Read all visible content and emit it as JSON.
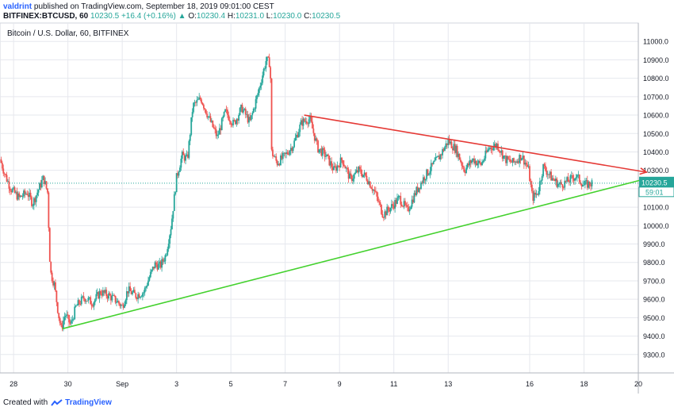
{
  "header": {
    "username": "valdrint",
    "published_text": " published on TradingView.com, September 18, 2019 09:01:00 CEST",
    "symbol": "BITFINEX:BTCUSD, 60",
    "last": "10230.5",
    "change_arrow": "▲",
    "change": "+16.4 (+0.16%)",
    "o_label": "O:",
    "o": "10230.4",
    "h_label": "H:",
    "h": "10231.0",
    "l_label": "L:",
    "l": "10230.0",
    "c_label": "C:",
    "c": "10230.5"
  },
  "legend": {
    "title": "Bitcoin / U.S. Dollar, 60, BITFINEX"
  },
  "price_tag": {
    "price": "10230.5",
    "countdown": "59:01"
  },
  "footer": {
    "created_with": "Created with",
    "brand": "TradingView"
  },
  "colors": {
    "up": "#26a69a",
    "down": "#ef5350",
    "resistance": "#e53935",
    "support": "#43d12d",
    "grid": "#e6e8ee",
    "price_line": "#26a69a"
  },
  "chart_data": {
    "type": "candlestick",
    "title": "Bitcoin / U.S. Dollar, 60, BITFINEX",
    "ylim": [
      9200,
      11100
    ],
    "y_ticks": [
      9300,
      9400,
      9500,
      9600,
      9700,
      9800,
      9900,
      10000,
      10100,
      10200,
      10300,
      10400,
      10500,
      10600,
      10700,
      10800,
      10900,
      11000
    ],
    "y_tick_labels": [
      "9300.0",
      "9400.0",
      "9500.0",
      "9600.0",
      "9700.0",
      "9800.0",
      "9900.0",
      "10000.0",
      "10100.0",
      "10200.0",
      "10300.0",
      "10400.0",
      "10500.0",
      "10600.0",
      "10700.0",
      "10800.0",
      "10900.0",
      "11000.0"
    ],
    "x_domain_days": [
      27.5,
      51.0
    ],
    "x_ticks": [
      {
        "day": 28,
        "label": "28"
      },
      {
        "day": 30,
        "label": "30"
      },
      {
        "day": 32,
        "label": "Sep"
      },
      {
        "day": 34,
        "label": "3"
      },
      {
        "day": 36,
        "label": "5"
      },
      {
        "day": 38,
        "label": "7"
      },
      {
        "day": 40,
        "label": "9"
      },
      {
        "day": 42,
        "label": "11"
      },
      {
        "day": 44,
        "label": "13"
      },
      {
        "day": 47,
        "label": "16"
      },
      {
        "day": 49,
        "label": "18"
      },
      {
        "day": 51,
        "label": "20"
      }
    ],
    "series": [
      {
        "day": 27.5,
        "price": 10360
      },
      {
        "day": 27.7,
        "price": 10270
      },
      {
        "day": 27.9,
        "price": 10200
      },
      {
        "day": 28.2,
        "price": 10150
      },
      {
        "day": 28.5,
        "price": 10180
      },
      {
        "day": 28.7,
        "price": 10120
      },
      {
        "day": 28.9,
        "price": 10190
      },
      {
        "day": 29.1,
        "price": 10260
      },
      {
        "day": 29.25,
        "price": 10180
      },
      {
        "day": 29.35,
        "price": 9750
      },
      {
        "day": 29.5,
        "price": 9680
      },
      {
        "day": 29.65,
        "price": 9520
      },
      {
        "day": 29.75,
        "price": 9440
      },
      {
        "day": 29.9,
        "price": 9520
      },
      {
        "day": 30.1,
        "price": 9460
      },
      {
        "day": 30.3,
        "price": 9560
      },
      {
        "day": 30.6,
        "price": 9610
      },
      {
        "day": 30.9,
        "price": 9580
      },
      {
        "day": 31.2,
        "price": 9640
      },
      {
        "day": 31.5,
        "price": 9620
      },
      {
        "day": 31.8,
        "price": 9590
      },
      {
        "day": 32.0,
        "price": 9560
      },
      {
        "day": 32.2,
        "price": 9650
      },
      {
        "day": 32.5,
        "price": 9620
      },
      {
        "day": 32.8,
        "price": 9640
      },
      {
        "day": 33.0,
        "price": 9720
      },
      {
        "day": 33.2,
        "price": 9790
      },
      {
        "day": 33.4,
        "price": 9780
      },
      {
        "day": 33.6,
        "price": 9840
      },
      {
        "day": 33.8,
        "price": 10000
      },
      {
        "day": 34.0,
        "price": 10260
      },
      {
        "day": 34.2,
        "price": 10380
      },
      {
        "day": 34.4,
        "price": 10360
      },
      {
        "day": 34.6,
        "price": 10650
      },
      {
        "day": 34.9,
        "price": 10690
      },
      {
        "day": 35.2,
        "price": 10580
      },
      {
        "day": 35.5,
        "price": 10480
      },
      {
        "day": 35.8,
        "price": 10620
      },
      {
        "day": 36.1,
        "price": 10550
      },
      {
        "day": 36.4,
        "price": 10640
      },
      {
        "day": 36.7,
        "price": 10560
      },
      {
        "day": 37.0,
        "price": 10720
      },
      {
        "day": 37.3,
        "price": 10900
      },
      {
        "day": 37.45,
        "price": 10880
      },
      {
        "day": 37.5,
        "price": 10400
      },
      {
        "day": 37.7,
        "price": 10340
      },
      {
        "day": 38.0,
        "price": 10380
      },
      {
        "day": 38.3,
        "price": 10440
      },
      {
        "day": 38.6,
        "price": 10560
      },
      {
        "day": 38.9,
        "price": 10580
      },
      {
        "day": 39.2,
        "price": 10420
      },
      {
        "day": 39.5,
        "price": 10380
      },
      {
        "day": 39.8,
        "price": 10300
      },
      {
        "day": 40.1,
        "price": 10360
      },
      {
        "day": 40.4,
        "price": 10250
      },
      {
        "day": 40.7,
        "price": 10300
      },
      {
        "day": 41.0,
        "price": 10260
      },
      {
        "day": 41.3,
        "price": 10180
      },
      {
        "day": 41.6,
        "price": 10060
      },
      {
        "day": 41.9,
        "price": 10100
      },
      {
        "day": 42.2,
        "price": 10150
      },
      {
        "day": 42.5,
        "price": 10080
      },
      {
        "day": 42.8,
        "price": 10180
      },
      {
        "day": 43.1,
        "price": 10260
      },
      {
        "day": 43.4,
        "price": 10320
      },
      {
        "day": 43.7,
        "price": 10380
      },
      {
        "day": 44.0,
        "price": 10460
      },
      {
        "day": 44.3,
        "price": 10410
      },
      {
        "day": 44.6,
        "price": 10300
      },
      {
        "day": 44.9,
        "price": 10360
      },
      {
        "day": 45.2,
        "price": 10330
      },
      {
        "day": 45.5,
        "price": 10420
      },
      {
        "day": 45.8,
        "price": 10440
      },
      {
        "day": 46.1,
        "price": 10360
      },
      {
        "day": 46.4,
        "price": 10340
      },
      {
        "day": 46.7,
        "price": 10380
      },
      {
        "day": 46.95,
        "price": 10310
      },
      {
        "day": 47.1,
        "price": 10150
      },
      {
        "day": 47.3,
        "price": 10180
      },
      {
        "day": 47.5,
        "price": 10320
      },
      {
        "day": 47.8,
        "price": 10260
      },
      {
        "day": 48.1,
        "price": 10220
      },
      {
        "day": 48.4,
        "price": 10240
      },
      {
        "day": 48.7,
        "price": 10270
      },
      {
        "day": 49.0,
        "price": 10220
      },
      {
        "day": 49.3,
        "price": 10230
      }
    ],
    "trendlines": [
      {
        "name": "resistance",
        "from": {
          "day": 38.7,
          "price": 10600
        },
        "to": {
          "day": 51.3,
          "price": 10290
        }
      },
      {
        "name": "support",
        "from": {
          "day": 29.8,
          "price": 9440
        },
        "to": {
          "day": 51.3,
          "price": 10255
        }
      }
    ],
    "last_price": 10230.5
  }
}
